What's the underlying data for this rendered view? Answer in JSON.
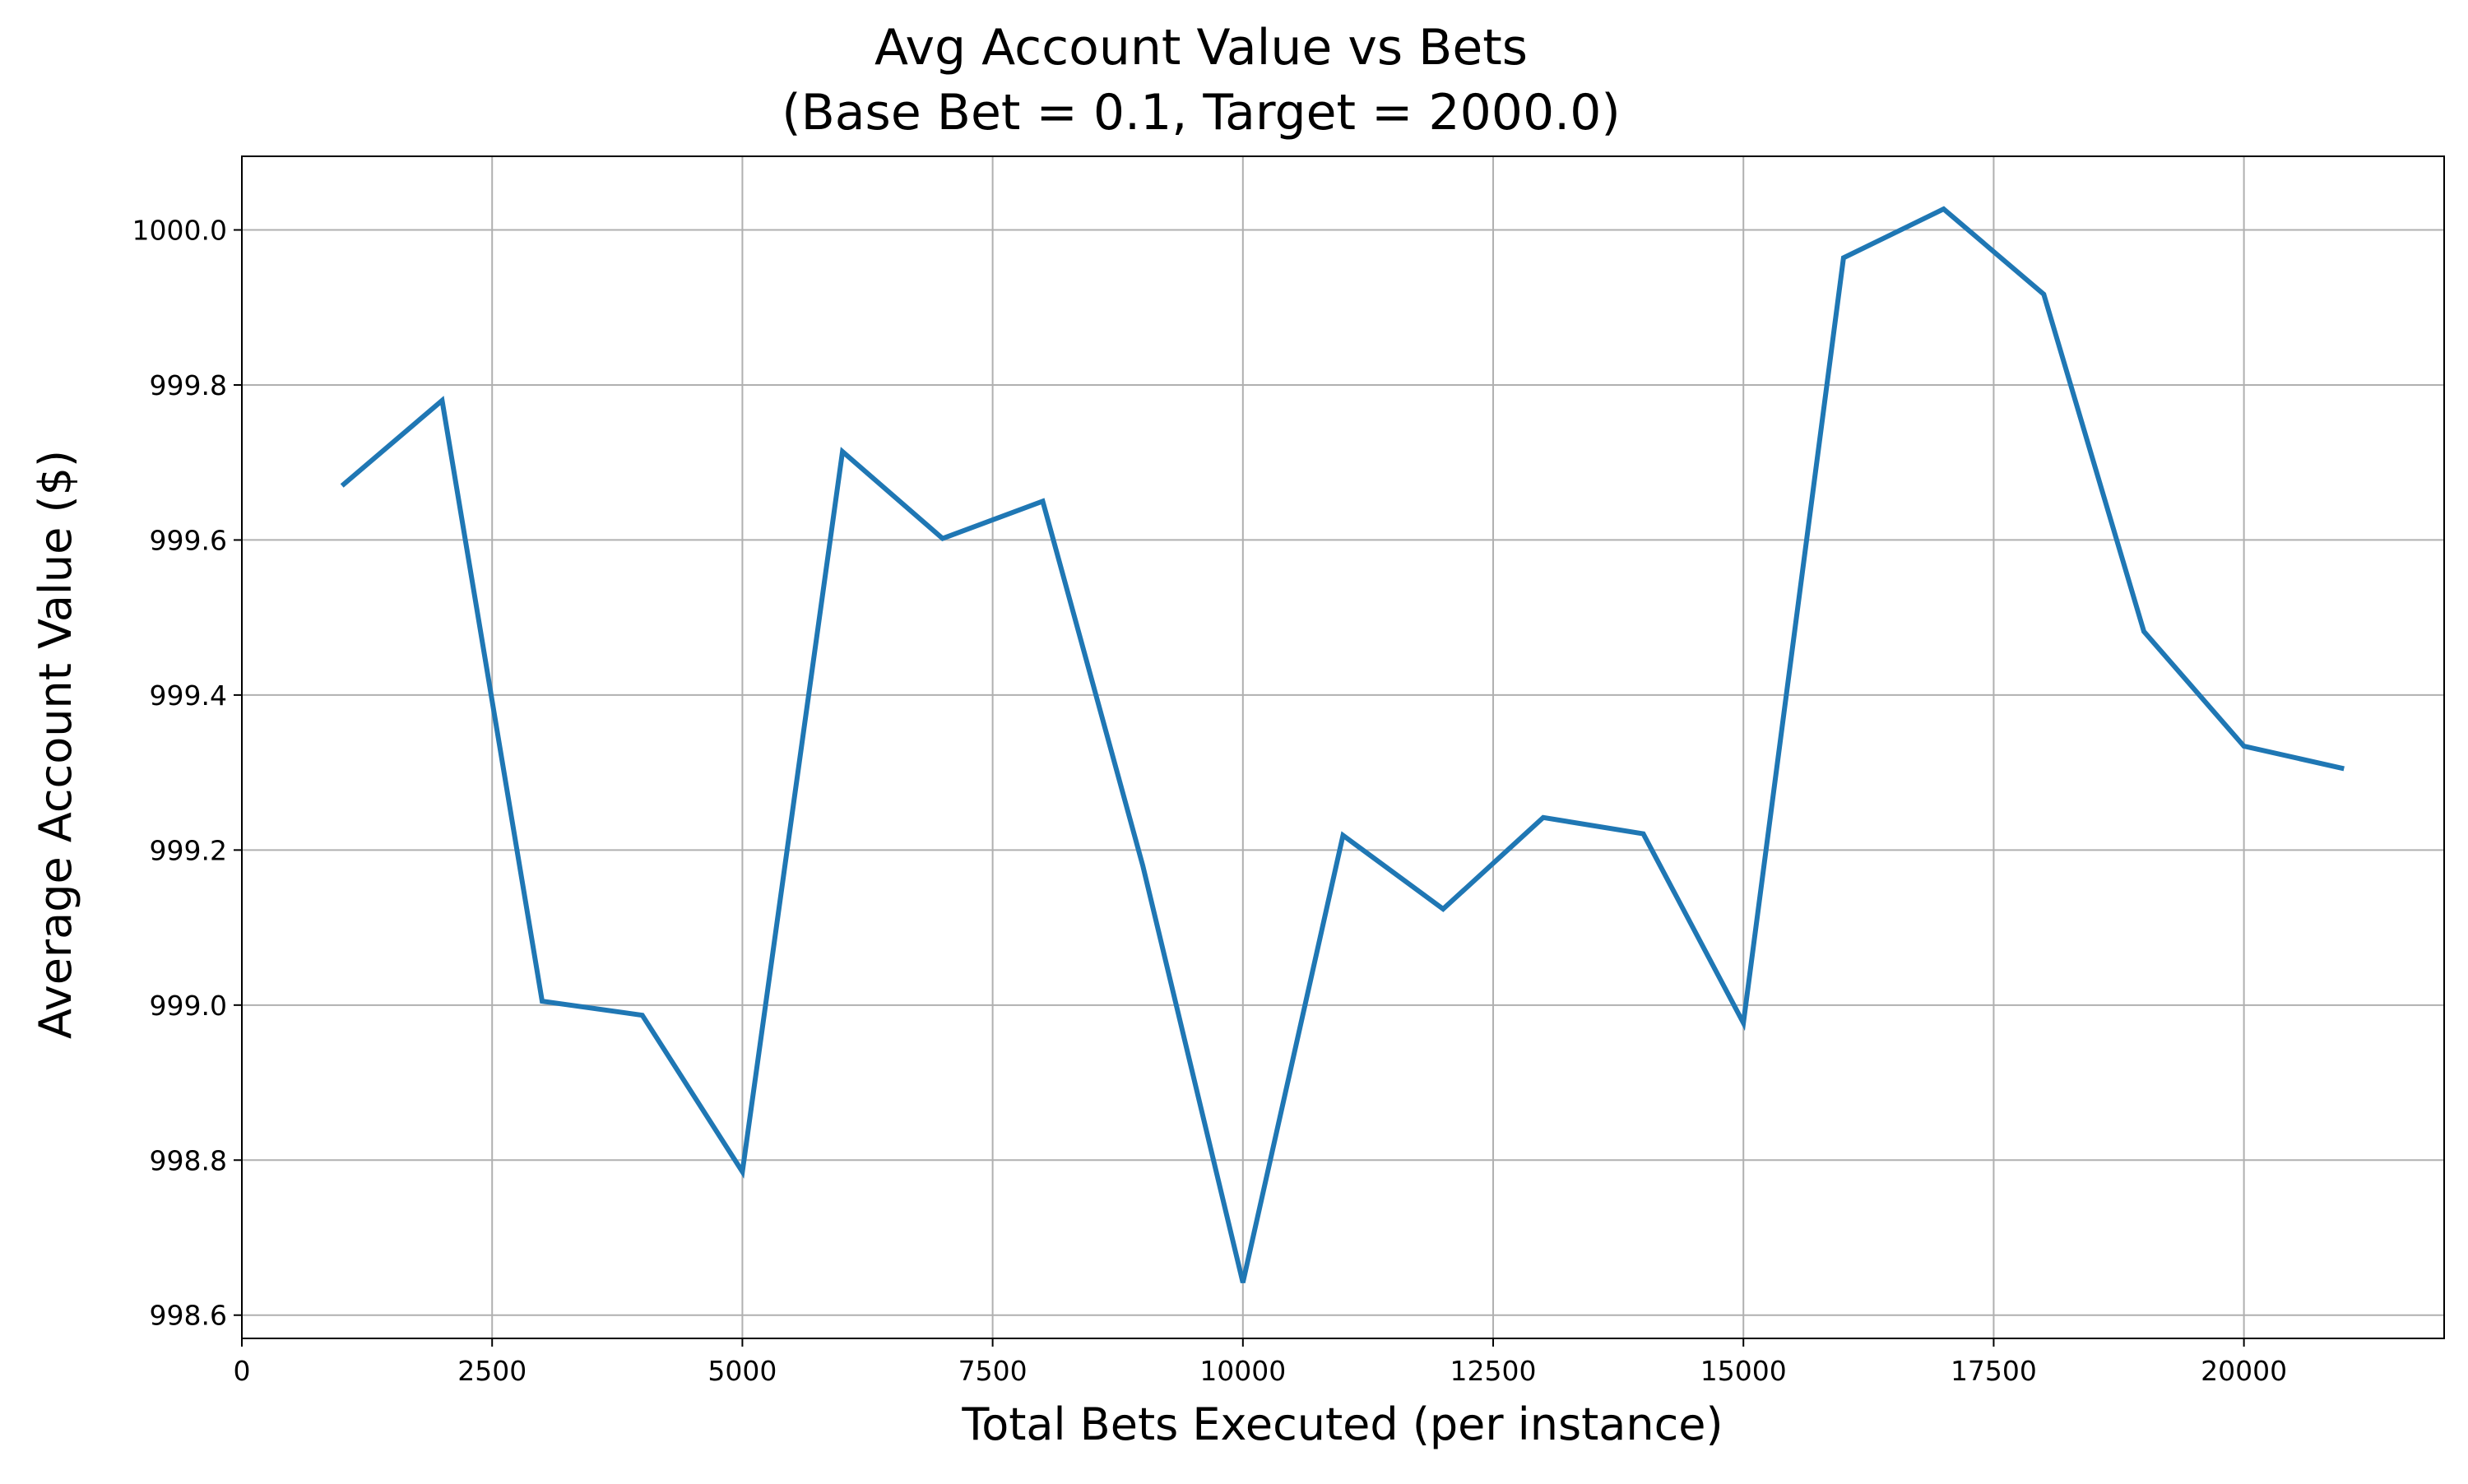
{
  "chart_data": {
    "type": "line",
    "title": "Avg Account Value vs Bets",
    "subtitle": "(Base Bet = 0.1, Target = 2000.0)",
    "xlabel": "Total Bets Executed (per instance)",
    "ylabel": "Average Account Value ($)",
    "xlim": [
      0,
      22000
    ],
    "ylim": [
      998.57,
      1000.095
    ],
    "x_ticks": [
      0,
      2500,
      5000,
      7500,
      10000,
      12500,
      15000,
      17500,
      20000
    ],
    "x_tick_labels": [
      "0",
      "2500",
      "5000",
      "7500",
      "10000",
      "12500",
      "15000",
      "17500",
      "20000"
    ],
    "y_ticks": [
      998.6,
      998.8,
      999.0,
      999.2,
      999.4,
      999.6,
      999.8,
      1000.0
    ],
    "y_tick_labels": [
      "998.6",
      "998.8",
      "999.0",
      "999.2",
      "999.4",
      "999.6",
      "999.8",
      "1000.0"
    ],
    "grid": true,
    "line_color": "#1f77b4",
    "series": [
      {
        "x": [
          1000,
          2000,
          3000,
          4000,
          5000,
          6000,
          7000,
          8000,
          9000,
          10000,
          11000,
          12000,
          13000,
          14000,
          15000,
          16000,
          17000,
          18000,
          19000,
          20000,
          21000
        ],
        "values": [
          999.67,
          999.78,
          999.005,
          998.987,
          998.785,
          999.714,
          999.602,
          999.65,
          999.18,
          998.642,
          999.219,
          999.124,
          999.242,
          999.221,
          998.977,
          999.964,
          1000.027,
          999.917,
          999.482,
          999.334,
          999.305
        ]
      }
    ]
  }
}
